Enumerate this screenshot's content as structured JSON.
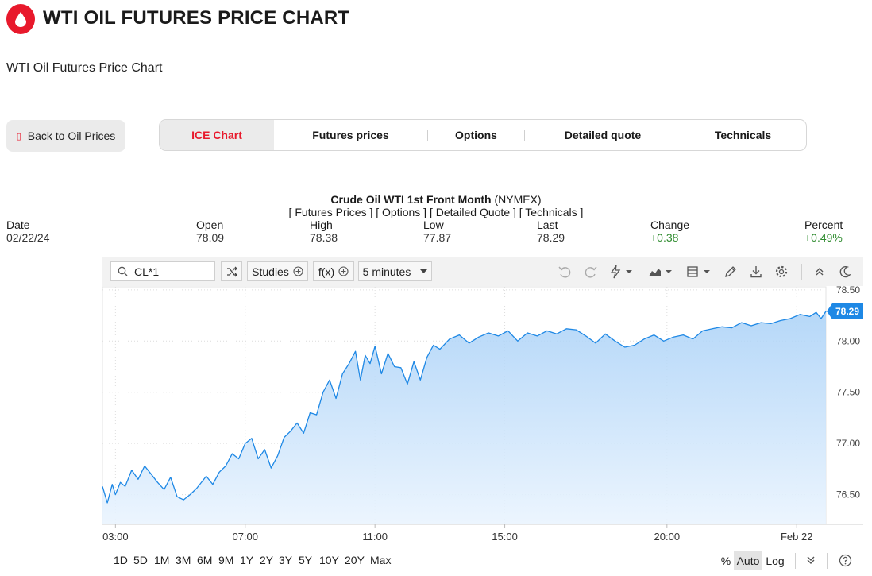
{
  "header": {
    "title": "WTI OIL FUTURES PRICE CHART",
    "subtitle": "WTI Oil Futures Price Chart",
    "brand_color": "#e8192c"
  },
  "back_button": {
    "label": "Back to Oil Prices",
    "icon": "oil-drop-icon"
  },
  "tabs": [
    {
      "label": "ICE Chart",
      "active": true
    },
    {
      "label": "Futures prices",
      "active": false
    },
    {
      "label": "Options",
      "active": false
    },
    {
      "label": "Detailed quote",
      "active": false
    },
    {
      "label": "Technicals",
      "active": false
    }
  ],
  "summary": {
    "instrument": "Crude Oil WTI 1st Front Month",
    "exchange": "(NYMEX)",
    "links": "[ Futures Prices ] [ Options ] [ Detailed Quote ] [ Technicals ]",
    "stats": [
      {
        "label": "Date",
        "value": "02/22/24",
        "positive": false
      },
      {
        "label": "Open",
        "value": "78.09",
        "positive": false
      },
      {
        "label": "High",
        "value": "78.38",
        "positive": false
      },
      {
        "label": "Low",
        "value": "77.87",
        "positive": false
      },
      {
        "label": "Last",
        "value": "78.29",
        "positive": false
      },
      {
        "label": "Change",
        "value": "+0.38",
        "positive": true
      },
      {
        "label": "Percent",
        "value": "+0.49%",
        "positive": true
      }
    ]
  },
  "toolbar": {
    "symbol": "CL*1",
    "studies_label": "Studies",
    "fx_label": "f(x)",
    "interval_label": "5 minutes"
  },
  "chart_data": {
    "type": "area",
    "title": "Crude Oil WTI 1st Front Month (NYMEX)",
    "x_tick_labels": [
      "03:00",
      "07:00",
      "11:00",
      "15:00",
      "20:00",
      "Feb 22"
    ],
    "y_tick_labels": [
      "78.50",
      "78.00",
      "77.50",
      "77.00",
      "76.50"
    ],
    "ylim": [
      76.21,
      78.53
    ],
    "x_start_hour": 2.6,
    "x_end_hour": 24.9,
    "last_value": 78.29,
    "last_label": "78.29",
    "line_color": "#1e88e5",
    "series": [
      {
        "name": "CL*1",
        "x": [
          2.6,
          2.75,
          2.9,
          3.0,
          3.15,
          3.3,
          3.5,
          3.7,
          3.9,
          4.1,
          4.3,
          4.5,
          4.7,
          4.9,
          5.1,
          5.3,
          5.5,
          5.8,
          6.0,
          6.2,
          6.4,
          6.6,
          6.8,
          7.0,
          7.2,
          7.4,
          7.6,
          7.8,
          8.0,
          8.2,
          8.4,
          8.6,
          8.8,
          9.0,
          9.2,
          9.4,
          9.6,
          9.8,
          10.0,
          10.2,
          10.4,
          10.55,
          10.7,
          10.85,
          11.0,
          11.2,
          11.4,
          11.6,
          11.8,
          12.0,
          12.2,
          12.4,
          12.6,
          12.8,
          13.0,
          13.3,
          13.6,
          13.9,
          14.2,
          14.5,
          14.8,
          15.1,
          15.4,
          15.7,
          16.0,
          16.3,
          16.6,
          16.9,
          17.2,
          17.5,
          17.8,
          18.1,
          18.4,
          18.7,
          19.0,
          19.3,
          19.6,
          19.9,
          20.2,
          20.5,
          20.8,
          21.1,
          21.4,
          21.7,
          22.0,
          22.3,
          22.6,
          22.9,
          23.2,
          23.5,
          23.8,
          24.1,
          24.4,
          24.6,
          24.75,
          24.9
        ],
        "values": [
          76.58,
          76.42,
          76.6,
          76.5,
          76.62,
          76.58,
          76.74,
          76.65,
          76.78,
          76.7,
          76.62,
          76.55,
          76.67,
          76.48,
          76.45,
          76.5,
          76.56,
          76.68,
          76.6,
          76.72,
          76.78,
          76.9,
          76.85,
          77.0,
          77.05,
          76.85,
          76.94,
          76.76,
          76.88,
          77.06,
          77.12,
          77.2,
          77.1,
          77.3,
          77.28,
          77.5,
          77.62,
          77.44,
          77.68,
          77.78,
          77.9,
          77.62,
          77.86,
          77.78,
          77.95,
          77.68,
          77.88,
          77.75,
          77.74,
          77.58,
          77.8,
          77.62,
          77.84,
          77.96,
          77.92,
          78.02,
          78.06,
          77.98,
          78.04,
          78.08,
          78.05,
          78.1,
          78.0,
          78.08,
          78.05,
          78.1,
          78.07,
          78.12,
          78.11,
          78.05,
          77.98,
          78.07,
          78.0,
          77.94,
          77.96,
          78.02,
          78.06,
          78.0,
          78.04,
          78.06,
          78.02,
          78.1,
          78.12,
          78.14,
          78.13,
          78.18,
          78.15,
          78.18,
          78.17,
          78.2,
          78.22,
          78.26,
          78.24,
          78.28,
          78.22,
          78.29
        ]
      }
    ]
  },
  "periods": [
    "1D",
    "5D",
    "1M",
    "3M",
    "6M",
    "9M",
    "1Y",
    "2Y",
    "3Y",
    "5Y",
    "10Y",
    "20Y",
    "Max"
  ],
  "scale": {
    "percent": "%",
    "auto": "Auto",
    "log": "Log",
    "active": "Auto"
  }
}
